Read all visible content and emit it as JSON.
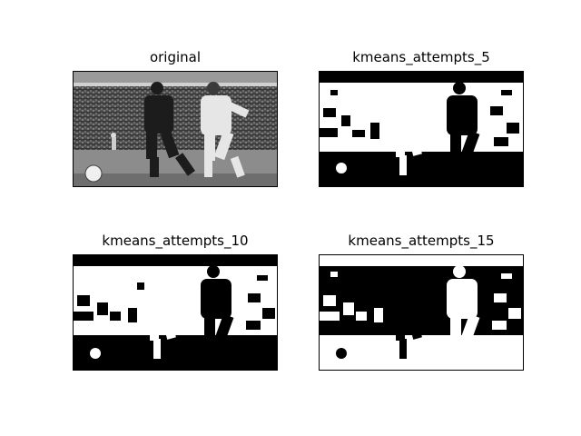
{
  "panels": [
    {
      "title": "original",
      "image": "grayscale soccer photo: two players contesting the ball in a stadium"
    },
    {
      "title": "kmeans_attempts_5",
      "image": "binary k-means segmentation of the photo (2 clusters)"
    },
    {
      "title": "kmeans_attempts_10",
      "image": "binary k-means segmentation of the photo (2 clusters)"
    },
    {
      "title": "kmeans_attempts_15",
      "image": "binary k-means segmentation of the photo, inverted polarity"
    }
  ],
  "colors": {
    "dark": "#000000",
    "light": "#ffffff",
    "mid": "#808080"
  }
}
